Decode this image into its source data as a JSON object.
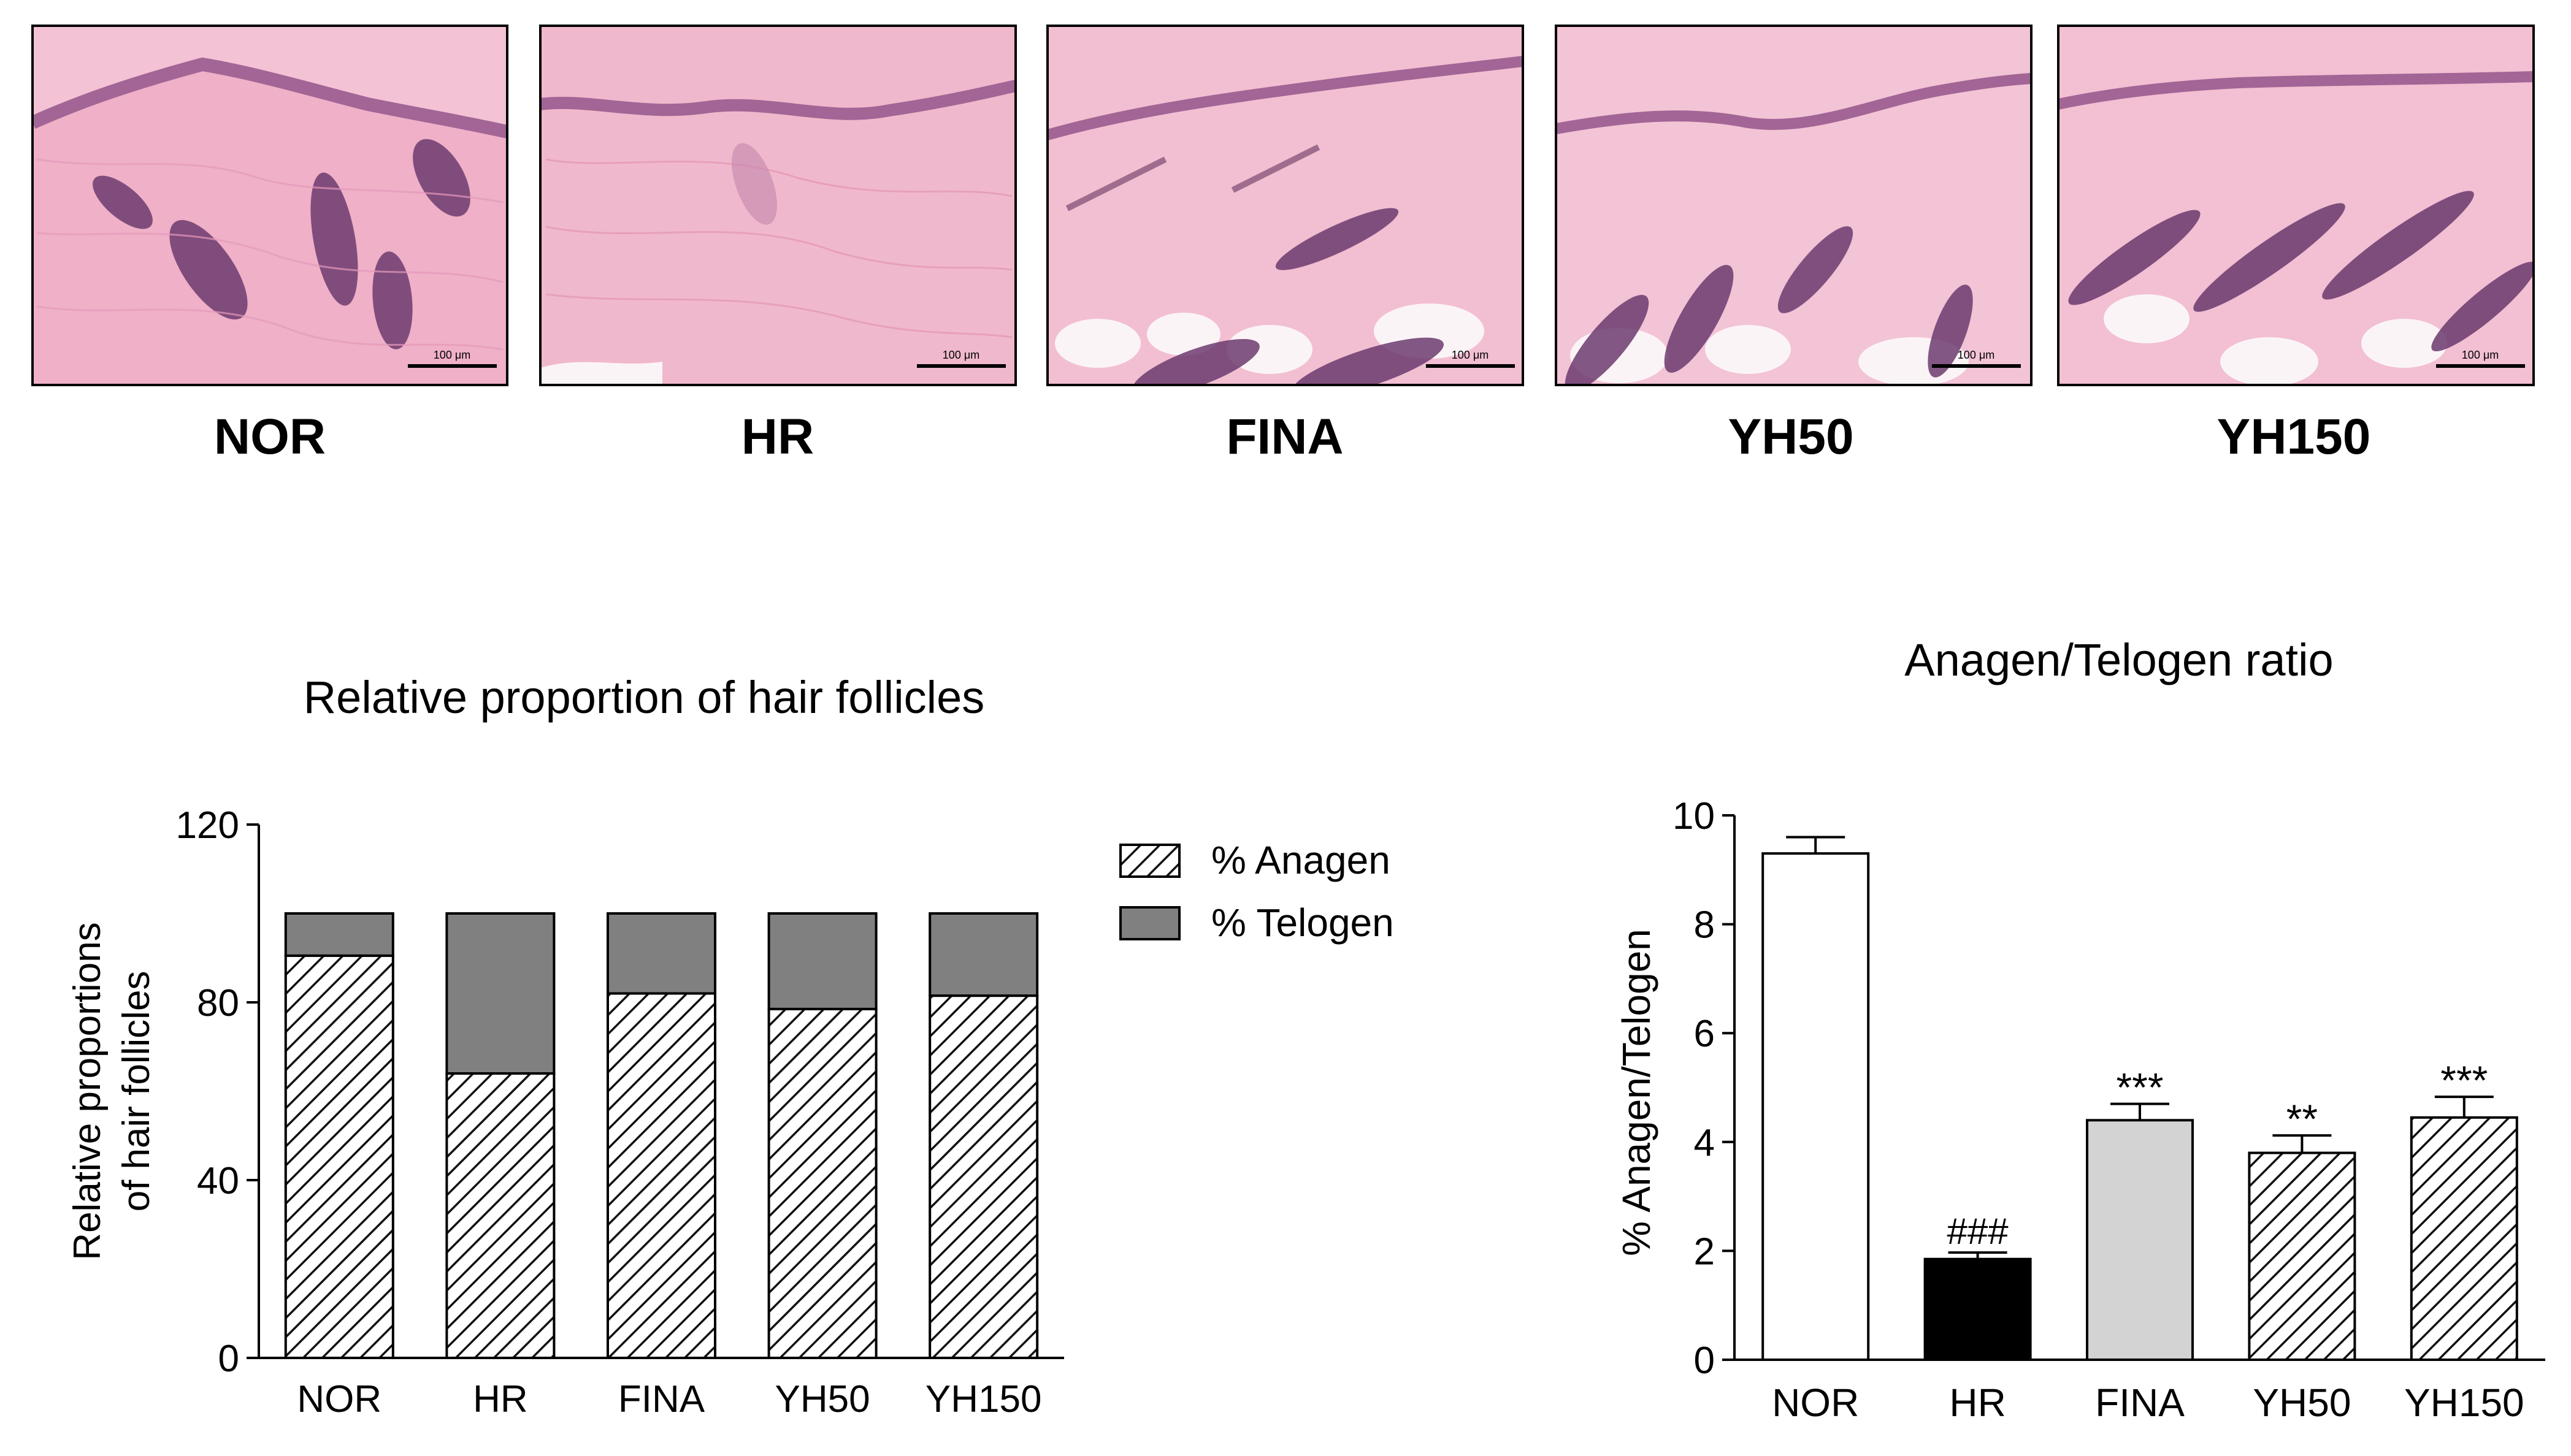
{
  "histology": {
    "panels": [
      {
        "label": "NOR",
        "scale_bar": "100 μm"
      },
      {
        "label": "HR",
        "scale_bar": "100 μm"
      },
      {
        "label": "FINA",
        "scale_bar": "100 μm"
      },
      {
        "label": "YH50",
        "scale_bar": "100 μm"
      },
      {
        "label": "YH150",
        "scale_bar": "100 μm"
      }
    ]
  },
  "colors": {
    "tissue": "#f2b8cf",
    "epidermis": "#a26595",
    "follicle": "#6c3a6e",
    "fat": "#fbf4f6",
    "hatch": "#111111",
    "telogen": "#808080",
    "hr_bar": "#000000",
    "fina_bar": "#d3d3d3"
  },
  "chart_data": [
    {
      "type": "bar",
      "stacked": true,
      "title": "Relative proportion of hair follicles",
      "ylabel": "Relative proportions\nof hair follicles",
      "ylabel_lines": [
        "Relative proportions",
        "of hair follicles"
      ],
      "xlabel": "",
      "categories": [
        "NOR",
        "HR",
        "FINA",
        "YH50",
        "YH150"
      ],
      "ylim": [
        0,
        120
      ],
      "yticks": [
        0,
        40,
        80,
        120
      ],
      "series": [
        {
          "name": "% Anagen",
          "fill": "hatched",
          "values": [
            90.5,
            64,
            82,
            78.5,
            81.5
          ]
        },
        {
          "name": "% Telogen",
          "fill": "solid-gray",
          "values": [
            9.5,
            36,
            18,
            21.5,
            18.5
          ]
        }
      ],
      "legend": "top-right"
    },
    {
      "type": "bar",
      "title": "Anagen/Telogen ratio",
      "ylabel": "% Anagen/Telogen",
      "xlabel": "",
      "categories": [
        "NOR",
        "HR",
        "FINA",
        "YH50",
        "YH150"
      ],
      "values": [
        9.3,
        1.85,
        4.4,
        3.8,
        4.45
      ],
      "errors": [
        0.3,
        0.12,
        0.3,
        0.32,
        0.38
      ],
      "fills": [
        "white",
        "black",
        "lightgray",
        "hatched",
        "hatched"
      ],
      "annotations": [
        "",
        "###",
        "***",
        "**",
        "***"
      ],
      "ylim": [
        0,
        10
      ],
      "yticks": [
        0,
        2,
        4,
        6,
        8,
        10
      ]
    }
  ]
}
